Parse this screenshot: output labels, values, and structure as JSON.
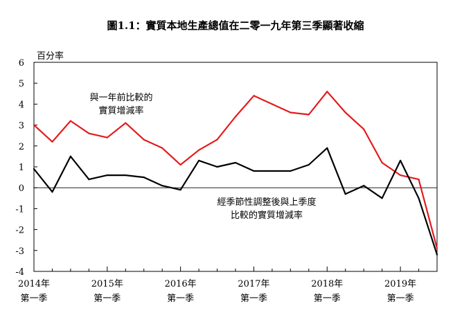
{
  "chart_data": {
    "type": "line",
    "title": "圖1.1：實質本地生產總值在二零一九年第三季顯著收縮",
    "ylabel": "百分率",
    "ylim": [
      -4,
      6
    ],
    "yticks": [
      6,
      5,
      4,
      3,
      2,
      1,
      0,
      -1,
      -2,
      -3,
      -4
    ],
    "x": [
      "2014Q1",
      "2014Q2",
      "2014Q3",
      "2014Q4",
      "2015Q1",
      "2015Q2",
      "2015Q3",
      "2015Q4",
      "2016Q1",
      "2016Q2",
      "2016Q3",
      "2016Q4",
      "2017Q1",
      "2017Q2",
      "2017Q3",
      "2017Q4",
      "2018Q1",
      "2018Q2",
      "2018Q3",
      "2018Q4",
      "2019Q1",
      "2019Q2",
      "2019Q3"
    ],
    "xtick_labels": [
      {
        "year": "2014年",
        "quarter": "第一季"
      },
      {
        "year": "2015年",
        "quarter": "第一季"
      },
      {
        "year": "2016年",
        "quarter": "第一季"
      },
      {
        "year": "2017年",
        "quarter": "第一季"
      },
      {
        "year": "2018年",
        "quarter": "第一季"
      },
      {
        "year": "2019年",
        "quarter": "第一季"
      }
    ],
    "series": [
      {
        "name": "與一年前比較的實質增減率",
        "label_lines": [
          "與一年前比較的",
          "實質增減率"
        ],
        "color": "#e41a1c",
        "values": [
          3.0,
          2.2,
          3.2,
          2.6,
          2.4,
          3.1,
          2.3,
          1.9,
          1.1,
          1.8,
          2.3,
          3.4,
          4.4,
          4.0,
          3.6,
          3.5,
          4.6,
          3.6,
          2.8,
          1.2,
          0.6,
          0.4,
          -2.9
        ]
      },
      {
        "name": "經季節性調整後與上季度比較的實質增減率",
        "label_lines": [
          "經季節性調整後與上季度",
          "比較的實質增減率"
        ],
        "color": "#000000",
        "values": [
          0.9,
          -0.2,
          1.5,
          0.4,
          0.6,
          0.6,
          0.5,
          0.1,
          -0.1,
          1.3,
          1.0,
          1.2,
          0.8,
          0.8,
          0.8,
          1.1,
          1.9,
          -0.3,
          0.1,
          -0.5,
          1.3,
          -0.5,
          -3.2
        ]
      }
    ],
    "grid": false,
    "zero_line": true
  }
}
